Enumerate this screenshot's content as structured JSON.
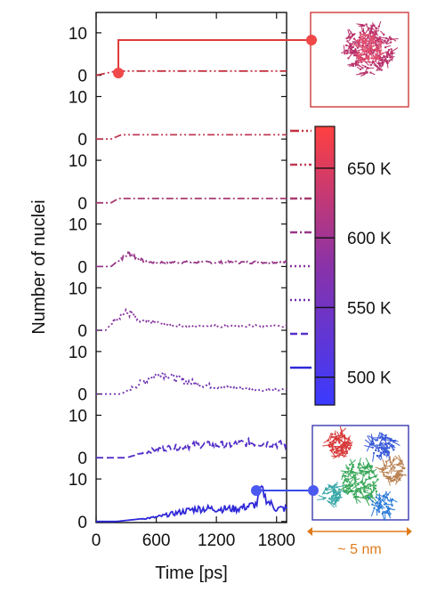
{
  "chart_data": {
    "type": "line",
    "xlabel": "Time [ps]",
    "ylabel": "Number of nuclei",
    "x_ticks": [
      0,
      600,
      1200,
      1800
    ],
    "xlim": [
      0,
      1900
    ],
    "panel_ylim": [
      0,
      15
    ],
    "panel_y_ticks": [
      "0",
      "10"
    ],
    "colorbar": {
      "ticks": [
        "650 K",
        "600 K",
        "550 K",
        "500 K"
      ],
      "tick_values": [
        650,
        600,
        550,
        500
      ],
      "range": [
        480,
        680
      ],
      "color_low": "#3a3aff",
      "color_high": "#ff4040"
    },
    "series": [
      {
        "temperature": 675,
        "color": "#c43040",
        "style": "dashdot2",
        "points": [
          [
            0,
            0
          ],
          [
            200,
            1
          ],
          [
            1900,
            1
          ]
        ]
      },
      {
        "temperature": 650,
        "color": "#c03a55",
        "style": "dashdotdot",
        "points": [
          [
            0,
            0
          ],
          [
            150,
            0
          ],
          [
            250,
            1
          ],
          [
            1900,
            1
          ]
        ]
      },
      {
        "temperature": 625,
        "color": "#a83a70",
        "style": "dashdot",
        "points": [
          [
            0,
            0
          ],
          [
            150,
            0
          ],
          [
            220,
            1
          ],
          [
            1900,
            1
          ]
        ]
      },
      {
        "temperature": 600,
        "color": "#98388a",
        "style": "dashdot",
        "points": [
          [
            0,
            0
          ],
          [
            150,
            0
          ],
          [
            250,
            2
          ],
          [
            330,
            3
          ],
          [
            420,
            2
          ],
          [
            480,
            1
          ],
          [
            600,
            1
          ],
          [
            1900,
            1
          ]
        ]
      },
      {
        "temperature": 575,
        "color": "#8a35a0",
        "style": "dotted",
        "points": [
          [
            0,
            0
          ],
          [
            100,
            0
          ],
          [
            200,
            3
          ],
          [
            260,
            4
          ],
          [
            350,
            4
          ],
          [
            420,
            2
          ],
          [
            550,
            2
          ],
          [
            800,
            1
          ],
          [
            1200,
            1
          ],
          [
            1900,
            1
          ]
        ]
      },
      {
        "temperature": 550,
        "color": "#7030b0",
        "style": "dotted",
        "points": [
          [
            0,
            0
          ],
          [
            250,
            0
          ],
          [
            400,
            2
          ],
          [
            550,
            4
          ],
          [
            650,
            5
          ],
          [
            750,
            4
          ],
          [
            900,
            3
          ],
          [
            1100,
            2
          ],
          [
            1300,
            1.5
          ],
          [
            1600,
            1
          ],
          [
            1900,
            1
          ]
        ]
      },
      {
        "temperature": 525,
        "color": "#5530c8",
        "style": "dashed",
        "points": [
          [
            0,
            0
          ],
          [
            300,
            0
          ],
          [
            450,
            1
          ],
          [
            600,
            2
          ],
          [
            800,
            2.5
          ],
          [
            1000,
            3
          ],
          [
            1300,
            3
          ],
          [
            1500,
            3.5
          ],
          [
            1700,
            3.5
          ],
          [
            1900,
            3
          ]
        ]
      },
      {
        "temperature": 500,
        "color": "#2f28d8",
        "style": "solid",
        "points": [
          [
            0,
            0
          ],
          [
            200,
            0
          ],
          [
            400,
            0.5
          ],
          [
            600,
            1
          ],
          [
            800,
            2
          ],
          [
            1000,
            3
          ],
          [
            1200,
            3
          ],
          [
            1400,
            3
          ],
          [
            1600,
            4
          ],
          [
            1650,
            8
          ],
          [
            1700,
            5
          ],
          [
            1800,
            3
          ],
          [
            1900,
            3
          ]
        ]
      }
    ]
  },
  "scale_bar": {
    "label": "~ 5 nm",
    "color": "#e07b1a"
  }
}
